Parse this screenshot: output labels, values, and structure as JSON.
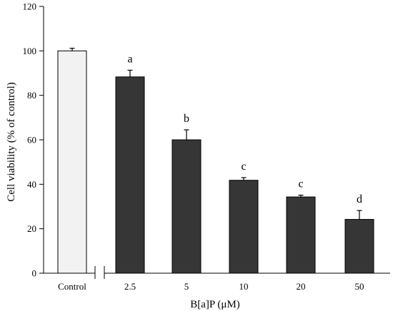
{
  "chart_data": {
    "type": "bar",
    "title": "",
    "xlabel": "B[a]P (μM)",
    "ylabel": "Cell viability  (% of control)",
    "ylim": [
      0,
      120
    ],
    "yticks": [
      0,
      20,
      40,
      60,
      80,
      100,
      120
    ],
    "categories": [
      "Control",
      "2.5",
      "5",
      "10",
      "20",
      "50"
    ],
    "values": [
      100,
      88.3,
      60,
      41.8,
      34.3,
      24.2
    ],
    "errors": [
      1.2,
      3.0,
      4.5,
      1.2,
      0.8,
      4.0
    ],
    "significance": [
      "",
      "a",
      "b",
      "c",
      "c",
      "d"
    ],
    "axis_break": "between Control and 2.5",
    "grid": false,
    "colors": {
      "control_fill": "#f2f2f2",
      "treatment_fill": "#363636",
      "outline": "#000000"
    }
  }
}
